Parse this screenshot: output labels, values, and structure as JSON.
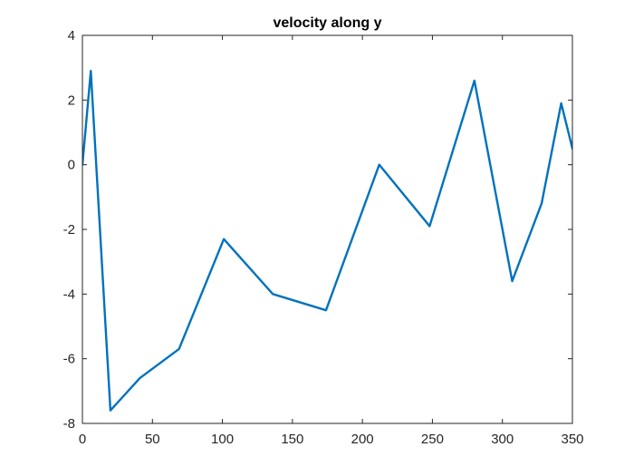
{
  "chart_data": {
    "type": "line",
    "title": "velocity along y",
    "xlabel": "",
    "ylabel": "",
    "xlim": [
      0,
      350
    ],
    "ylim": [
      -8,
      4
    ],
    "xticks": [
      0,
      50,
      100,
      150,
      200,
      250,
      300,
      350
    ],
    "xtick_labels": [
      "0",
      "50",
      "100",
      "150",
      "200",
      "250",
      "300",
      "350"
    ],
    "yticks": [
      -8,
      -6,
      -4,
      -2,
      0,
      2,
      4
    ],
    "ytick_labels": [
      "-8",
      "-6",
      "-4",
      "-2",
      "0",
      "2",
      "4"
    ],
    "grid": false,
    "legend": "none",
    "series": [
      {
        "color": "#0072BD",
        "x": [
          0,
          6,
          20,
          41,
          69,
          101,
          136,
          174,
          212,
          248,
          280,
          307,
          328,
          342,
          350
        ],
        "y": [
          0,
          2.9,
          -7.6,
          -6.6,
          -5.7,
          -2.3,
          -4.0,
          -4.5,
          0.0,
          -1.9,
          2.6,
          -3.6,
          -1.2,
          1.9,
          0.5
        ]
      }
    ],
    "colors": {
      "axis": "#262626",
      "line": "#0072BD"
    }
  }
}
